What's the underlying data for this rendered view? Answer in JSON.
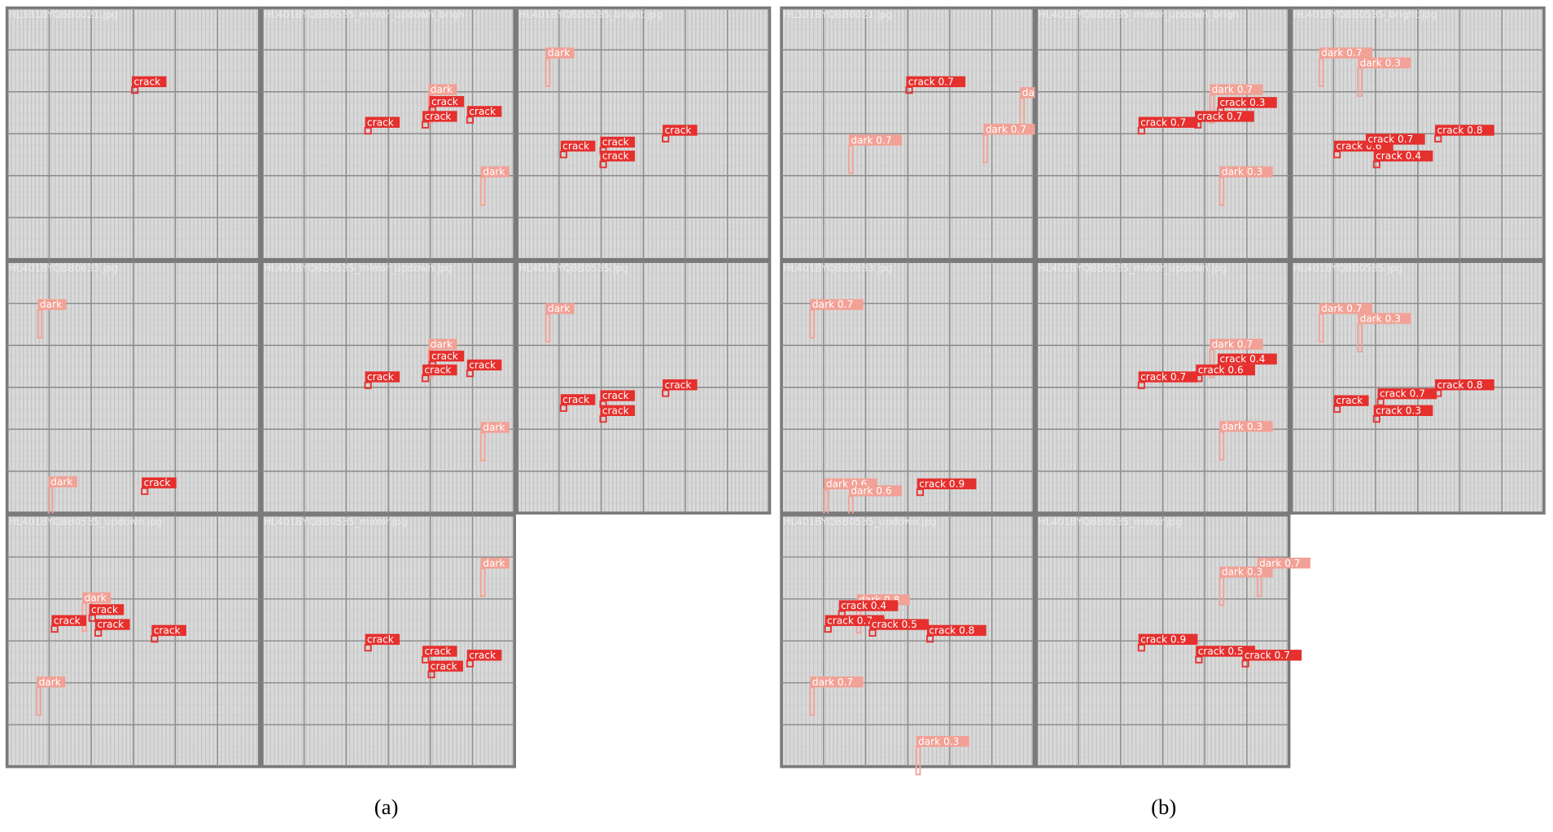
{
  "panels": [
    {
      "caption": "(a)",
      "tiles": [
        {
          "name": "HL331BYQBB0021.jpg",
          "labels": [
            "crack"
          ]
        },
        {
          "name": "HL401BYQBB0535_mirror_updown_brigh",
          "labels": [
            "dark",
            "crack",
            "crack",
            "crack",
            "crack",
            "dark"
          ]
        },
        {
          "name": "HL401BYQBB0535_bright.jpg",
          "labels": [
            "dark",
            "crack",
            "crack",
            "crack",
            "crack"
          ]
        },
        {
          "name": "HL401BYQBB0633.jpg",
          "labels": [
            "dark",
            "dark",
            "crack"
          ]
        },
        {
          "name": "HL401BYQBB0535_mirror_updown.jpg",
          "labels": [
            "dark",
            "crack",
            "crack",
            "crack",
            "crack",
            "dark"
          ]
        },
        {
          "name": "HL401BYQBB0535.jpg",
          "labels": [
            "dark",
            "crack",
            "crack",
            "crack",
            "crack"
          ]
        },
        {
          "name": "HL401BYQBB0535_updown.jpg",
          "labels": [
            "dark",
            "crack",
            "crack",
            "crack",
            "crack",
            "dark"
          ]
        },
        {
          "name": "HL401BYQBB0535_mirror.jpg",
          "labels": [
            "dark",
            "crack",
            "crack",
            "crack",
            "crack"
          ]
        }
      ]
    },
    {
      "caption": "(b)",
      "tiles": [
        {
          "name": "HL331BYQBB0021.jpg",
          "labels": [
            "crack 0.7",
            "da",
            "dark 0.7",
            "dark 0.7"
          ]
        },
        {
          "name": "HL401BYQBB0535_mirror_updown_brigh",
          "labels": [
            "dark 0.7",
            "crack 0.3",
            "crack 0.7",
            "crack 0.7",
            "dark 0.3"
          ]
        },
        {
          "name": "HL401BYQBB0535_bright.jpg",
          "labels": [
            "dark 0.7",
            "dark 0.3",
            "crack 0.8",
            "crack 0.6",
            "crack 0.7",
            "crack 0.4"
          ]
        },
        {
          "name": "HL401BYQBB0633.jpg",
          "labels": [
            "dark 0.7",
            "dark 0.6",
            "dark 0.6",
            "crack 0.9"
          ]
        },
        {
          "name": "HL401BYQBB0535_mirror_updown.jpg",
          "labels": [
            "dark 0.7",
            "crack 0.4",
            "crack 0.6",
            "crack 0.7",
            "dark 0.3"
          ]
        },
        {
          "name": "HL401BYQBB0535.jpg",
          "labels": [
            "dark 0.7",
            "dark 0.3",
            "crack 0.8",
            "crack 0.7",
            "crack",
            "crack 0.3"
          ]
        },
        {
          "name": "HL401BYQBB0535_updown.jpg",
          "labels": [
            "dark 0.8",
            "crack 0.4",
            "crack 0.7",
            "crack 0.5",
            "crack 0.8",
            "dark 0.7",
            "dark 0.3"
          ]
        },
        {
          "name": "HL401BYQBB0535_mirror.jpg",
          "labels": [
            "dark 0.7",
            "dark 0.3",
            "crack 0.9",
            "crack 0.5",
            "crack 0.7"
          ]
        }
      ]
    }
  ]
}
